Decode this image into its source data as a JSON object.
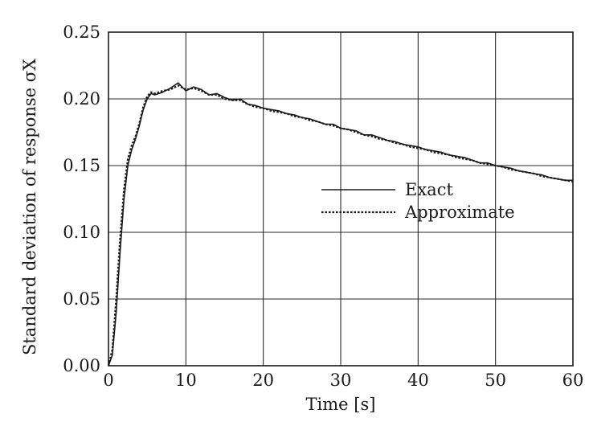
{
  "chart_data": {
    "type": "line",
    "title": "",
    "xlabel": "Time [s]",
    "ylabel": "Standard deviation of response σX",
    "xlim": [
      0,
      60
    ],
    "ylim": [
      0,
      0.25
    ],
    "xticks": [
      0,
      10,
      20,
      30,
      40,
      50,
      60
    ],
    "yticks": [
      0.0,
      0.05,
      0.1,
      0.15,
      0.2,
      0.25
    ],
    "xtick_labels": [
      "0",
      "10",
      "20",
      "30",
      "40",
      "50",
      "60"
    ],
    "ytick_labels": [
      "0.00",
      "0.05",
      "0.10",
      "0.15",
      "0.20",
      "0.25"
    ],
    "grid": true,
    "legend_position": "center-right",
    "series": [
      {
        "name": "Exact",
        "style": "solid",
        "color": "#1a1a1a",
        "x": [
          0,
          0.5,
          1,
          1.5,
          2,
          2.5,
          3,
          3.5,
          4,
          4.5,
          5,
          5.5,
          6,
          7,
          8,
          9,
          10,
          11,
          12,
          13,
          14,
          15,
          16,
          17,
          18,
          19,
          20,
          21,
          22,
          23,
          24,
          25,
          26,
          27,
          28,
          29,
          30,
          31,
          32,
          33,
          34,
          35,
          36,
          37,
          38,
          39,
          40,
          41,
          42,
          43,
          44,
          45,
          46,
          47,
          48,
          49,
          50,
          51,
          52,
          53,
          54,
          55,
          56,
          57,
          58,
          59,
          60
        ],
        "y": [
          0.0,
          0.008,
          0.04,
          0.085,
          0.125,
          0.15,
          0.162,
          0.17,
          0.18,
          0.192,
          0.2,
          0.204,
          0.203,
          0.205,
          0.208,
          0.212,
          0.206,
          0.209,
          0.207,
          0.203,
          0.204,
          0.201,
          0.199,
          0.2,
          0.196,
          0.195,
          0.193,
          0.192,
          0.191,
          0.189,
          0.188,
          0.186,
          0.185,
          0.183,
          0.181,
          0.181,
          0.178,
          0.177,
          0.176,
          0.173,
          0.173,
          0.171,
          0.169,
          0.168,
          0.166,
          0.165,
          0.164,
          0.162,
          0.161,
          0.16,
          0.158,
          0.157,
          0.156,
          0.154,
          0.152,
          0.152,
          0.15,
          0.149,
          0.148,
          0.146,
          0.145,
          0.144,
          0.143,
          0.141,
          0.14,
          0.139,
          0.139
        ]
      },
      {
        "name": "Approximate",
        "style": "dotted",
        "color": "#1a1a1a",
        "x": [
          0,
          0.5,
          1,
          1.5,
          2,
          2.5,
          3,
          3.5,
          4,
          4.5,
          5,
          5.5,
          6,
          7,
          8,
          9,
          10,
          11,
          12,
          13,
          14,
          15,
          16,
          17,
          18,
          19,
          20,
          21,
          22,
          23,
          24,
          25,
          26,
          27,
          28,
          29,
          30,
          31,
          32,
          33,
          34,
          35,
          36,
          37,
          38,
          39,
          40,
          41,
          42,
          43,
          44,
          45,
          46,
          47,
          48,
          49,
          50,
          51,
          52,
          53,
          54,
          55,
          56,
          57,
          58,
          59,
          60
        ],
        "y": [
          0.0,
          0.012,
          0.05,
          0.095,
          0.132,
          0.155,
          0.165,
          0.172,
          0.182,
          0.194,
          0.202,
          0.205,
          0.204,
          0.206,
          0.207,
          0.21,
          0.207,
          0.208,
          0.206,
          0.203,
          0.203,
          0.2,
          0.199,
          0.199,
          0.196,
          0.194,
          0.193,
          0.191,
          0.19,
          0.189,
          0.187,
          0.186,
          0.184,
          0.183,
          0.181,
          0.18,
          0.178,
          0.177,
          0.175,
          0.173,
          0.172,
          0.17,
          0.169,
          0.167,
          0.166,
          0.164,
          0.163,
          0.162,
          0.16,
          0.159,
          0.158,
          0.156,
          0.155,
          0.154,
          0.152,
          0.151,
          0.15,
          0.149,
          0.147,
          0.146,
          0.145,
          0.144,
          0.142,
          0.141,
          0.14,
          0.139,
          0.138
        ]
      }
    ]
  }
}
